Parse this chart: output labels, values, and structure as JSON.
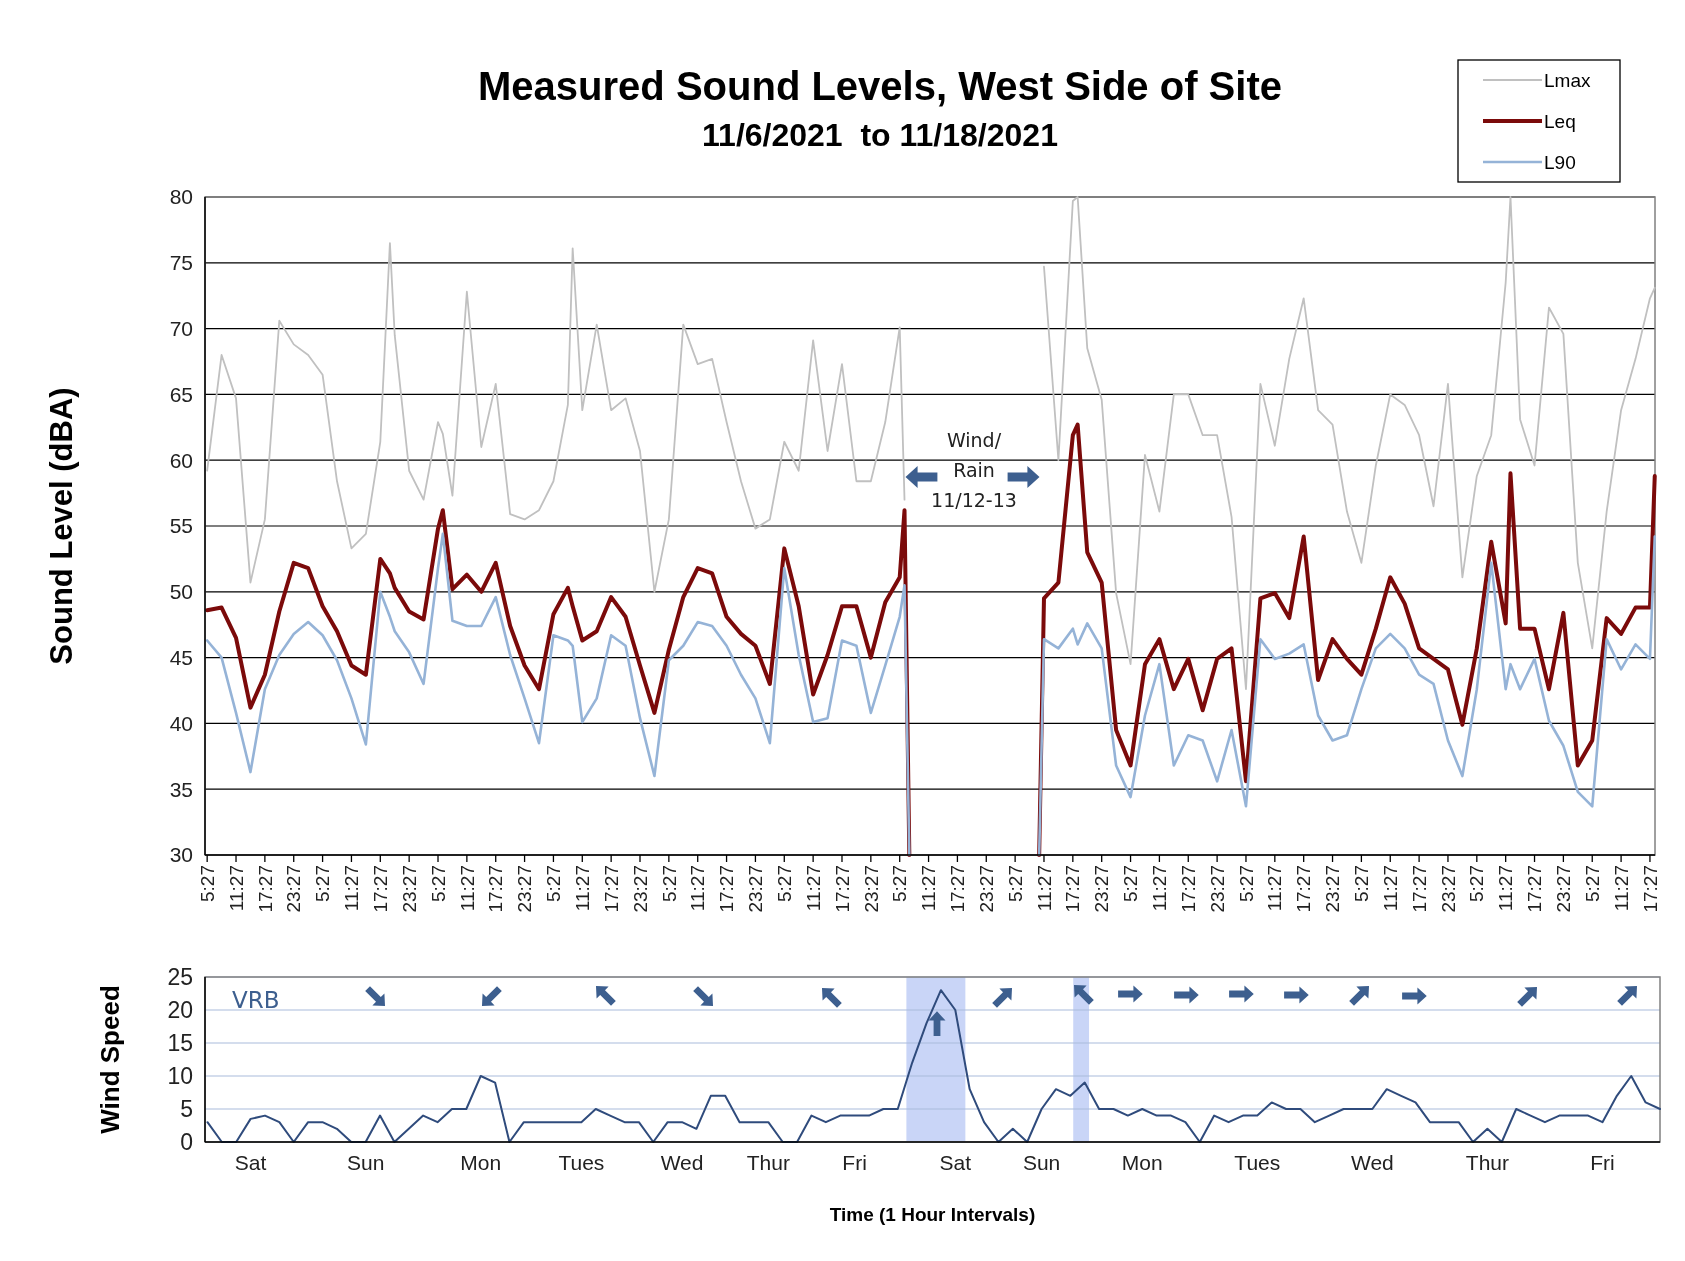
{
  "chart_data": [
    {
      "type": "line",
      "title": "Measured Sound Levels, West Side of Site",
      "subtitle": "11/6/2021  to 11/18/2021",
      "ylabel": "Sound Level (dBA)",
      "x": [
        "2021-11-06T05:27",
        "2021-11-06T08:27",
        "2021-11-06T11:27",
        "2021-11-06T14:27",
        "2021-11-06T17:27",
        "2021-11-06T20:27",
        "2021-11-06T23:27",
        "2021-11-07T02:27",
        "2021-11-07T05:27",
        "2021-11-07T08:27",
        "2021-11-07T11:27",
        "2021-11-07T14:27",
        "2021-11-07T17:27",
        "2021-11-07T19:27",
        "2021-11-07T20:27",
        "2021-11-07T23:27",
        "2021-11-08T02:27",
        "2021-11-08T05:27",
        "2021-11-08T06:27",
        "2021-11-08T08:27",
        "2021-11-08T11:27",
        "2021-11-08T14:27",
        "2021-11-08T17:27",
        "2021-11-08T20:27",
        "2021-11-08T23:27",
        "2021-11-09T02:27",
        "2021-11-09T05:27",
        "2021-11-09T08:27",
        "2021-11-09T09:27",
        "2021-11-09T11:27",
        "2021-11-09T14:27",
        "2021-11-09T17:27",
        "2021-11-09T20:27",
        "2021-11-09T23:27",
        "2021-11-10T02:27",
        "2021-11-10T05:27",
        "2021-11-10T08:27",
        "2021-11-10T11:27",
        "2021-11-10T14:27",
        "2021-11-10T17:27",
        "2021-11-10T20:27",
        "2021-11-10T23:27",
        "2021-11-11T02:27",
        "2021-11-11T05:27",
        "2021-11-11T08:27",
        "2021-11-11T11:27",
        "2021-11-11T14:27",
        "2021-11-11T17:27",
        "2021-11-11T20:27",
        "2021-11-11T23:27",
        "2021-11-12T02:27",
        "2021-11-12T05:27",
        "2021-11-12T06:27",
        "2021-11-12T07:27",
        "2021-11-12T21:27",
        "2021-11-13T10:27",
        "2021-11-13T11:27",
        "2021-11-13T14:27",
        "2021-11-13T17:27",
        "2021-11-13T18:27",
        "2021-11-13T20:27",
        "2021-11-13T23:27",
        "2021-11-14T02:27",
        "2021-11-14T05:27",
        "2021-11-14T08:27",
        "2021-11-14T11:27",
        "2021-11-14T14:27",
        "2021-11-14T17:27",
        "2021-11-14T20:27",
        "2021-11-14T23:27",
        "2021-11-15T02:27",
        "2021-11-15T05:27",
        "2021-11-15T08:27",
        "2021-11-15T11:27",
        "2021-11-15T14:27",
        "2021-11-15T17:27",
        "2021-11-15T20:27",
        "2021-11-15T23:27",
        "2021-11-16T02:27",
        "2021-11-16T05:27",
        "2021-11-16T08:27",
        "2021-11-16T11:27",
        "2021-11-16T14:27",
        "2021-11-16T17:27",
        "2021-11-16T20:27",
        "2021-11-16T23:27",
        "2021-11-17T02:27",
        "2021-11-17T05:27",
        "2021-11-17T08:27",
        "2021-11-17T11:27",
        "2021-11-17T12:27",
        "2021-11-17T14:27",
        "2021-11-17T17:27",
        "2021-11-17T20:27",
        "2021-11-17T23:27",
        "2021-11-18T02:27",
        "2021-11-18T05:27",
        "2021-11-18T08:27",
        "2021-11-18T11:27",
        "2021-11-18T14:27",
        "2021-11-18T17:27",
        "2021-11-18T18:27"
      ],
      "series": [
        {
          "name": "Lmax",
          "color": "#c0c0c0",
          "values": [
            59.2,
            68,
            64.7,
            50.7,
            55.5,
            70.6,
            68.8,
            68,
            66.5,
            58.4,
            53.3,
            54.4,
            61.4,
            76.5,
            69.5,
            59.2,
            57,
            62.9,
            62,
            57.3,
            72.8,
            61,
            65.8,
            55.9,
            55.5,
            56.2,
            58.4,
            64.2,
            76.1,
            63.8,
            70.3,
            63.8,
            64.7,
            60.7,
            50,
            55.5,
            70.3,
            67.3,
            67.7,
            62.9,
            58.4,
            54.8,
            55.5,
            61.4,
            59.2,
            69.1,
            60.7,
            67.3,
            58.4,
            58.4,
            62.9,
            70.1,
            57,
            null,
            null,
            null,
            74.7,
            60,
            79.7,
            80,
            68.5,
            64.6,
            49.9,
            44.5,
            60.4,
            56.1,
            65,
            65,
            61.9,
            61.9,
            55.7,
            42.6,
            65.8,
            61.1,
            67.7,
            72.3,
            63.8,
            62.7,
            56.1,
            52.2,
            59.6,
            65,
            64.2,
            61.9,
            56.5,
            65.8,
            51.1,
            58.8,
            61.9,
            73.5,
            80,
            63.1,
            59.6,
            71.6,
            69.6,
            52.2,
            45.7,
            56.1,
            63.8,
            67.7,
            72.3,
            73.1
          ]
        },
        {
          "name": "Leq",
          "color": "#7b0a0a",
          "values": [
            48.6,
            48.8,
            46.5,
            41.2,
            43.7,
            48.5,
            52.2,
            51.8,
            48.9,
            47,
            44.4,
            43.7,
            52.5,
            51.4,
            50.3,
            48.5,
            47.9,
            54.8,
            56.2,
            50.2,
            51.3,
            50,
            52.2,
            47.4,
            44.4,
            42.6,
            48.3,
            50.3,
            48.9,
            46.3,
            47,
            49.6,
            48.1,
            44.4,
            40.8,
            45.6,
            49.6,
            51.8,
            51.4,
            48.1,
            46.8,
            45.9,
            43,
            53.3,
            48.9,
            42.2,
            45.2,
            48.9,
            48.9,
            45,
            49.2,
            51.1,
            56.2,
            30,
            null,
            30,
            49.5,
            50.7,
            61.9,
            62.7,
            53,
            50.7,
            39.5,
            36.8,
            44.5,
            46.4,
            42.6,
            44.9,
            41,
            44.9,
            45.7,
            35.6,
            49.5,
            49.9,
            48,
            54.2,
            43.3,
            46.4,
            44.9,
            43.7,
            47.2,
            51.1,
            49.1,
            45.7,
            44.9,
            44.1,
            39.9,
            45.7,
            53.8,
            47.6,
            59,
            47.2,
            47.2,
            42.6,
            48.4,
            36.8,
            38.7,
            48,
            46.8,
            48.8,
            48.8,
            58.8
          ]
        },
        {
          "name": "L90",
          "color": "#95b3d7",
          "values": [
            46.3,
            45,
            40.8,
            36.3,
            42.6,
            45.2,
            46.8,
            47.7,
            46.7,
            44.8,
            41.9,
            38.4,
            50,
            48.1,
            47,
            45.4,
            43,
            51.8,
            54.4,
            47.8,
            47.4,
            47.4,
            49.6,
            45.2,
            41.9,
            38.5,
            46.7,
            46.3,
            45.9,
            40.1,
            41.9,
            46.7,
            45.9,
            40.4,
            36,
            44.8,
            45.9,
            47.7,
            47.4,
            45.9,
            43.7,
            41.9,
            38.5,
            51.8,
            45.2,
            40.1,
            40.4,
            46.3,
            45.9,
            40.8,
            44.4,
            48.1,
            50.5,
            30,
            null,
            30,
            46.4,
            45.7,
            47.2,
            46,
            47.6,
            45.7,
            36.8,
            34.4,
            40.6,
            44.5,
            36.8,
            39.1,
            38.7,
            35.6,
            39.5,
            33.7,
            46.4,
            44.9,
            45.3,
            46,
            40.6,
            38.7,
            39.1,
            42.6,
            45.7,
            46.8,
            45.7,
            43.7,
            43,
            38.7,
            36,
            42.6,
            52.2,
            42.6,
            44.5,
            42.6,
            44.9,
            40.2,
            38.3,
            34.8,
            33.7,
            46.4,
            44.1,
            46,
            44.9,
            54.2
          ]
        }
      ],
      "xlim": [
        "2021-11-06T05:00",
        "2021-11-18T18:30"
      ],
      "xticks": [
        {
          "value": "2021-11-06T05:27",
          "label": "5:27"
        },
        {
          "value": "2021-11-06T11:27",
          "label": "11:27"
        },
        {
          "value": "2021-11-06T17:27",
          "label": "17:27"
        },
        {
          "value": "2021-11-06T23:27",
          "label": "23:27"
        },
        {
          "value": "2021-11-07T05:27",
          "label": "5:27"
        },
        {
          "value": "2021-11-07T11:27",
          "label": "11:27"
        },
        {
          "value": "2021-11-07T17:27",
          "label": "17:27"
        },
        {
          "value": "2021-11-07T23:27",
          "label": "23:27"
        },
        {
          "value": "2021-11-08T05:27",
          "label": "5:27"
        },
        {
          "value": "2021-11-08T11:27",
          "label": "11:27"
        },
        {
          "value": "2021-11-08T17:27",
          "label": "17:27"
        },
        {
          "value": "2021-11-08T23:27",
          "label": "23:27"
        },
        {
          "value": "2021-11-09T05:27",
          "label": "5:27"
        },
        {
          "value": "2021-11-09T11:27",
          "label": "11:27"
        },
        {
          "value": "2021-11-09T17:27",
          "label": "17:27"
        },
        {
          "value": "2021-11-09T23:27",
          "label": "23:27"
        },
        {
          "value": "2021-11-10T05:27",
          "label": "5:27"
        },
        {
          "value": "2021-11-10T11:27",
          "label": "11:27"
        },
        {
          "value": "2021-11-10T17:27",
          "label": "17:27"
        },
        {
          "value": "2021-11-10T23:27",
          "label": "23:27"
        },
        {
          "value": "2021-11-11T05:27",
          "label": "5:27"
        },
        {
          "value": "2021-11-11T11:27",
          "label": "11:27"
        },
        {
          "value": "2021-11-11T17:27",
          "label": "17:27"
        },
        {
          "value": "2021-11-11T23:27",
          "label": "23:27"
        },
        {
          "value": "2021-11-12T05:27",
          "label": "5:27"
        },
        {
          "value": "2021-11-12T11:27",
          "label": "11:27"
        },
        {
          "value": "2021-11-12T17:27",
          "label": "17:27"
        },
        {
          "value": "2021-11-12T23:27",
          "label": "23:27"
        },
        {
          "value": "2021-11-13T05:27",
          "label": "5:27"
        },
        {
          "value": "2021-11-13T11:27",
          "label": "11:27"
        },
        {
          "value": "2021-11-13T17:27",
          "label": "17:27"
        },
        {
          "value": "2021-11-13T23:27",
          "label": "23:27"
        },
        {
          "value": "2021-11-14T05:27",
          "label": "5:27"
        },
        {
          "value": "2021-11-14T11:27",
          "label": "11:27"
        },
        {
          "value": "2021-11-14T17:27",
          "label": "17:27"
        },
        {
          "value": "2021-11-14T23:27",
          "label": "23:27"
        },
        {
          "value": "2021-11-15T05:27",
          "label": "5:27"
        },
        {
          "value": "2021-11-15T11:27",
          "label": "11:27"
        },
        {
          "value": "2021-11-15T17:27",
          "label": "17:27"
        },
        {
          "value": "2021-11-15T23:27",
          "label": "23:27"
        },
        {
          "value": "2021-11-16T05:27",
          "label": "5:27"
        },
        {
          "value": "2021-11-16T11:27",
          "label": "11:27"
        },
        {
          "value": "2021-11-16T17:27",
          "label": "17:27"
        },
        {
          "value": "2021-11-16T23:27",
          "label": "23:27"
        },
        {
          "value": "2021-11-17T05:27",
          "label": "5:27"
        },
        {
          "value": "2021-11-17T11:27",
          "label": "11:27"
        },
        {
          "value": "2021-11-17T17:27",
          "label": "17:27"
        },
        {
          "value": "2021-11-17T23:27",
          "label": "23:27"
        },
        {
          "value": "2021-11-18T05:27",
          "label": "5:27"
        },
        {
          "value": "2021-11-18T11:27",
          "label": "11:27"
        },
        {
          "value": "2021-11-18T17:27",
          "label": "17:27"
        }
      ],
      "ylim": [
        30,
        80
      ],
      "yticks": [
        30,
        35,
        40,
        45,
        50,
        55,
        60,
        65,
        70,
        75,
        80
      ],
      "grid": "y",
      "legend": "top right",
      "annotations": [
        "Wind/\nRain\n11/12-13"
      ]
    },
    {
      "type": "line",
      "ylabel": "Wind Speed",
      "xlabel": "Time (1 Hour Intervals)",
      "categories": [
        null,
        null,
        null,
        "Sat",
        null,
        null,
        null,
        null,
        null,
        null,
        null,
        "Sun",
        null,
        null,
        null,
        null,
        null,
        null,
        null,
        "Mon",
        null,
        null,
        null,
        null,
        null,
        null,
        "Tues",
        null,
        null,
        null,
        null,
        null,
        null,
        "Wed",
        null,
        null,
        null,
        null,
        null,
        "Thur",
        null,
        null,
        null,
        null,
        null,
        "Fri",
        null,
        null,
        null,
        null,
        null,
        null,
        "Sat",
        null,
        null,
        null,
        null,
        null,
        "Sun",
        null,
        null,
        null,
        null,
        null,
        null,
        "Mon",
        null,
        null,
        null,
        null,
        null,
        null,
        null,
        "Tues",
        null,
        null,
        null,
        null,
        null,
        null,
        null,
        "Wed",
        null,
        null,
        null,
        null,
        null,
        null,
        null,
        "Thur",
        null,
        null,
        null,
        null,
        null,
        null,
        null,
        "Fri",
        null,
        null,
        null,
        null
      ],
      "series": [
        {
          "color": "#2f4b7c",
          "values": [
            3,
            0,
            0,
            3.5,
            4,
            3,
            0,
            3,
            3,
            2,
            0,
            0,
            4,
            0,
            2,
            4,
            3,
            5,
            5,
            10,
            9,
            0,
            3,
            3,
            3,
            3,
            3,
            5,
            4,
            3,
            3,
            0,
            3,
            3,
            2,
            7,
            7,
            3,
            3,
            3,
            0,
            0,
            4,
            3,
            4,
            4,
            4,
            5,
            5,
            12,
            18,
            23,
            20,
            8,
            3,
            0,
            2,
            0,
            5,
            8,
            7,
            9,
            5,
            5,
            4,
            5,
            4,
            4,
            3,
            0,
            4,
            3,
            4,
            4,
            6,
            5,
            5,
            3,
            4,
            5,
            5,
            5,
            8,
            7,
            6,
            3,
            3,
            3,
            0,
            2,
            0,
            5,
            4,
            3,
            4,
            4,
            4,
            3,
            7,
            10,
            6,
            5
          ]
        }
      ],
      "ylim": [
        0,
        25
      ],
      "yticks": [
        0,
        5,
        10,
        15,
        20,
        25
      ],
      "grid": "y",
      "annotations": [
        "VRB"
      ]
    }
  ]
}
